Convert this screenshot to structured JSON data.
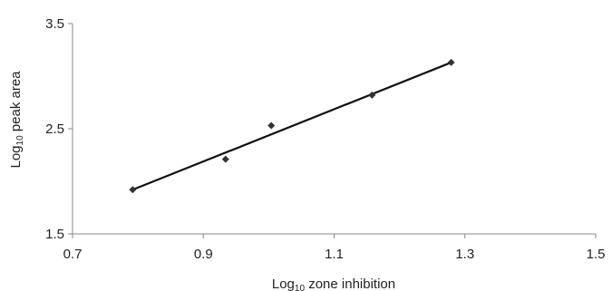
{
  "chart_data": {
    "type": "scatter",
    "title": "",
    "xlabel": {
      "prefix": "Log",
      "subscript": "10",
      "suffix": " zone inhibition"
    },
    "ylabel": {
      "prefix": "Log",
      "subscript": "10",
      "suffix": " peak area"
    },
    "xlim": [
      0.7,
      1.5
    ],
    "ylim": [
      1.5,
      3.5
    ],
    "xticks": [
      0.7,
      0.9,
      1.1,
      1.3,
      1.5
    ],
    "xtick_labels": [
      "0.7",
      "0.9",
      "1.1",
      "1.3",
      "1.5"
    ],
    "yticks": [
      1.5,
      2.5,
      3.5
    ],
    "ytick_labels": [
      "1.5",
      "2.5",
      "3.5"
    ],
    "grid": false,
    "legend": "none",
    "marker": "diamond",
    "colors": {
      "marker": "#333333",
      "line": "#111111",
      "axis": "#888888"
    },
    "points": [
      {
        "x": 0.792,
        "y": 1.92
      },
      {
        "x": 0.934,
        "y": 2.21
      },
      {
        "x": 1.004,
        "y": 2.53
      },
      {
        "x": 1.158,
        "y": 2.82
      },
      {
        "x": 1.279,
        "y": 3.13
      }
    ],
    "trendline": {
      "x": [
        0.792,
        1.279
      ],
      "y": [
        1.92,
        3.13
      ]
    }
  }
}
